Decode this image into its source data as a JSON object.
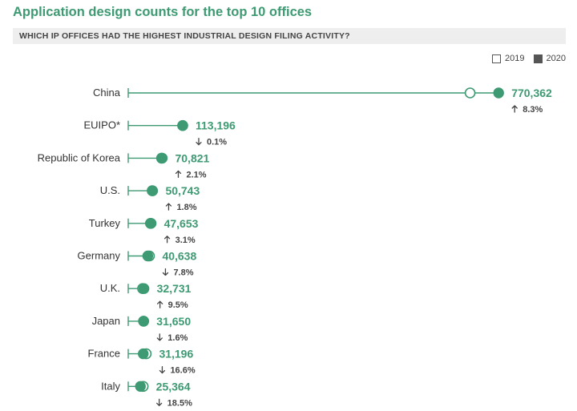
{
  "header": {
    "title": "Application design counts for the top 10 offices",
    "subtitle": "WHICH IP OFFICES HAD THE HIGHEST INDUSTRIAL DESIGN FILING ACTIVITY?"
  },
  "legend": {
    "items": [
      {
        "label": "2019"
      },
      {
        "label": "2020"
      }
    ]
  },
  "colors": {
    "accent": "#3d9a72",
    "text": "#333333",
    "muted": "#444444"
  },
  "chart_data": {
    "type": "dot",
    "title": "Application design counts for the top 10 offices",
    "subtitle": "WHICH IP OFFICES HAD THE HIGHEST INDUSTRIAL DESIGN FILING ACTIVITY?",
    "x_range": [
      0,
      900000
    ],
    "series_names": [
      "2019",
      "2020"
    ],
    "rows": [
      {
        "office": "China",
        "y2019": 711000,
        "y2020": 770362,
        "value_label": "770,362",
        "change": "8.3%",
        "direction": "up"
      },
      {
        "office": "EUIPO*",
        "y2019": 113309,
        "y2020": 113196,
        "value_label": "113,196",
        "change": "0.1%",
        "direction": "down"
      },
      {
        "office": "Republic of Korea",
        "y2019": 69360,
        "y2020": 70821,
        "value_label": "70,821",
        "change": "2.1%",
        "direction": "up"
      },
      {
        "office": "U.S.",
        "y2019": 49848,
        "y2020": 50743,
        "value_label": "50,743",
        "change": "1.8%",
        "direction": "up"
      },
      {
        "office": "Turkey",
        "y2019": 46220,
        "y2020": 47653,
        "value_label": "47,653",
        "change": "3.1%",
        "direction": "up"
      },
      {
        "office": "Germany",
        "y2019": 44076,
        "y2020": 40638,
        "value_label": "40,638",
        "change": "7.8%",
        "direction": "down"
      },
      {
        "office": "U.K.",
        "y2019": 29890,
        "y2020": 32731,
        "value_label": "32,731",
        "change": "9.5%",
        "direction": "up"
      },
      {
        "office": "Japan",
        "y2019": 32166,
        "y2020": 31650,
        "value_label": "31,650",
        "change": "1.6%",
        "direction": "down"
      },
      {
        "office": "France",
        "y2019": 37406,
        "y2020": 31196,
        "value_label": "31,196",
        "change": "16.6%",
        "direction": "down"
      },
      {
        "office": "Italy",
        "y2019": 31117,
        "y2020": 25364,
        "value_label": "25,364",
        "change": "18.5%",
        "direction": "down"
      }
    ]
  }
}
